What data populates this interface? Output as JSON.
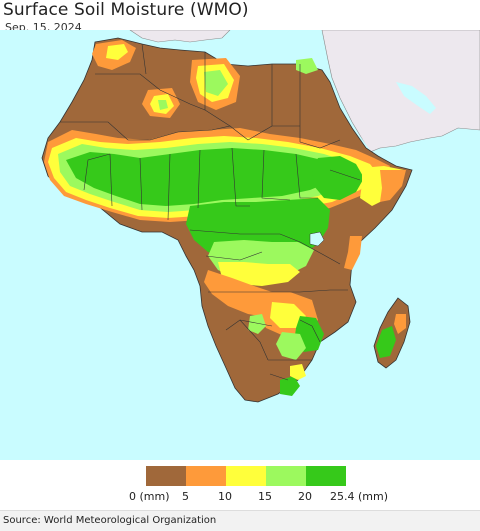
{
  "title": "Surface Soil Moisture (WMO)",
  "date": "Sep. 15, 2024",
  "legend": {
    "colors": [
      "#a0683a",
      "#fe9a3a",
      "#ffff3b",
      "#9cf95e",
      "#36c91a"
    ],
    "labels": [
      "0 (mm)",
      "5",
      "10",
      "15",
      "20",
      "25.4 (mm)"
    ]
  },
  "source": "Source: World Meteorological Organization",
  "map_colors": {
    "ocean": "#c9fcff",
    "other_land": "#ede8ee",
    "dry": "#a0683a",
    "low": "#fe9a3a",
    "mid": "#ffff3b",
    "moist": "#9cf95e",
    "wet": "#36c91a",
    "border": "#333333"
  }
}
